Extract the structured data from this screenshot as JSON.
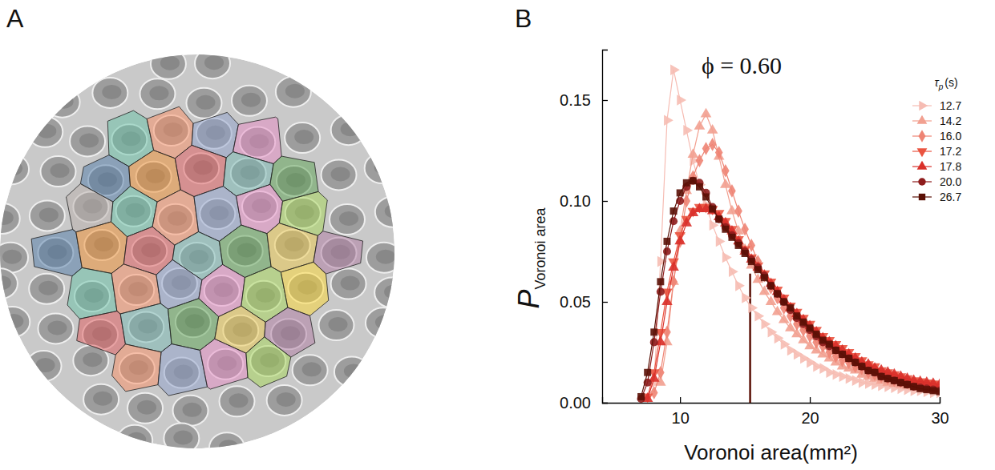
{
  "figure": {
    "panel_labels": [
      "A",
      "B"
    ]
  },
  "chart_data": {
    "type": "line",
    "title": "ϕ = 0.60",
    "xlabel": "Voronoi area(mm²)",
    "ylabel": "P",
    "ylabel_subscript": "Voronoi area",
    "legend_title": "τ",
    "legend_title_subscript": "p",
    "legend_title_unit": "(s)",
    "legend": "top-right",
    "grid": false,
    "xlim": [
      4,
      30
    ],
    "xticks": [
      10,
      20,
      30
    ],
    "ylim": [
      0,
      0.175
    ],
    "yticks": [
      {
        "value": 0,
        "label": "0.00"
      },
      {
        "value": 0.05,
        "label": "0.05"
      },
      {
        "value": 0.1,
        "label": "0.10"
      },
      {
        "value": 0.15,
        "label": "0.15"
      }
    ],
    "reference_line": {
      "x": 15.4,
      "y": 0.064,
      "color": "#5a1005"
    },
    "x": [
      7,
      7.5,
      8,
      8.5,
      9,
      9.5,
      10,
      10.5,
      11,
      11.5,
      12,
      12.5,
      13,
      13.5,
      14,
      14.5,
      15,
      15.5,
      16,
      16.5,
      17,
      17.5,
      18,
      18.5,
      19,
      19.5,
      20,
      20.5,
      21,
      21.5,
      22,
      22.5,
      23,
      23.5,
      24,
      24.5,
      25,
      25.5,
      26,
      26.5,
      27,
      27.5,
      28,
      28.5,
      29,
      29.5,
      30
    ],
    "series": [
      {
        "name": "12.7",
        "color": "#f6bcb3",
        "marker": "triangle-right",
        "line_style": "solid",
        "values": [
          null,
          null,
          0.01,
          0.07,
          0.14,
          0.165,
          0.15,
          0.135,
          0.12,
          0.108,
          0.098,
          0.088,
          0.08,
          0.072,
          0.065,
          0.058,
          0.052,
          0.047,
          0.043,
          0.039,
          0.035,
          0.032,
          0.029,
          0.026,
          0.024,
          0.022,
          0.02,
          0.018,
          0.017,
          0.015,
          0.014,
          0.013,
          0.012,
          0.011,
          0.01,
          0.0095,
          0.009,
          0.0085,
          0.008,
          0.0075,
          0.007,
          0.0065,
          0.006,
          0.006,
          0.0055,
          0.005,
          0.005
        ]
      },
      {
        "name": "14.2",
        "color": "#f2a090",
        "marker": "triangle-up",
        "line_style": "solid",
        "values": [
          null,
          null,
          null,
          0.01,
          0.03,
          0.06,
          0.085,
          0.105,
          0.123,
          0.137,
          0.143,
          0.135,
          0.122,
          0.108,
          0.095,
          0.085,
          0.076,
          0.068,
          0.061,
          0.055,
          0.05,
          0.045,
          0.041,
          0.037,
          0.034,
          0.031,
          0.028,
          0.026,
          0.024,
          0.022,
          0.02,
          0.018,
          0.017,
          0.016,
          0.014,
          0.013,
          0.012,
          0.011,
          0.01,
          0.0095,
          0.009,
          0.0085,
          0.008,
          0.0075,
          0.007,
          0.0068,
          0.0065
        ]
      },
      {
        "name": "16.0",
        "color": "#ee8474",
        "marker": "diamond",
        "line_style": "solid",
        "values": [
          null,
          null,
          0.005,
          0.015,
          0.035,
          0.06,
          0.08,
          0.1,
          0.112,
          0.12,
          0.126,
          0.128,
          0.124,
          0.115,
          0.105,
          0.095,
          0.086,
          0.078,
          0.07,
          0.063,
          0.057,
          0.052,
          0.047,
          0.043,
          0.039,
          0.036,
          0.033,
          0.03,
          0.028,
          0.025,
          0.023,
          0.021,
          0.02,
          0.018,
          0.017,
          0.015,
          0.014,
          0.013,
          0.012,
          0.011,
          0.0105,
          0.01,
          0.0095,
          0.009,
          0.0085,
          0.008,
          0.0078
        ]
      },
      {
        "name": "17.2",
        "color": "#ea5440",
        "marker": "triangle-down",
        "line_style": "solid",
        "values": [
          null,
          0.003,
          0.015,
          0.035,
          0.055,
          0.07,
          0.083,
          0.091,
          0.095,
          0.097,
          0.097,
          0.096,
          0.094,
          0.09,
          0.086,
          0.081,
          0.076,
          0.072,
          0.068,
          0.064,
          0.06,
          0.056,
          0.052,
          0.048,
          0.045,
          0.042,
          0.039,
          0.036,
          0.033,
          0.031,
          0.029,
          0.027,
          0.025,
          0.023,
          0.021,
          0.019,
          0.018,
          0.016,
          0.015,
          0.014,
          0.013,
          0.012,
          0.011,
          0.0105,
          0.01,
          0.0095,
          0.009
        ]
      },
      {
        "name": "17.8",
        "color": "#d9302a",
        "marker": "triangle-up",
        "line_style": "solid",
        "values": [
          null,
          0.002,
          0.012,
          0.03,
          0.05,
          0.067,
          0.08,
          0.089,
          0.094,
          0.096,
          0.096,
          0.095,
          0.092,
          0.089,
          0.085,
          0.08,
          0.075,
          0.071,
          0.067,
          0.063,
          0.059,
          0.055,
          0.051,
          0.047,
          0.044,
          0.041,
          0.038,
          0.035,
          0.032,
          0.03,
          0.028,
          0.026,
          0.024,
          0.022,
          0.02,
          0.019,
          0.017,
          0.016,
          0.015,
          0.014,
          0.013,
          0.012,
          0.011,
          0.0105,
          0.01,
          0.0095,
          0.009
        ]
      },
      {
        "name": "20.0",
        "color": "#8e1c1c",
        "marker": "circle",
        "line_style": "solid",
        "values": [
          0.002,
          0.01,
          0.03,
          0.055,
          0.075,
          0.09,
          0.1,
          0.107,
          0.11,
          0.109,
          0.104,
          0.097,
          0.091,
          0.087,
          0.083,
          0.079,
          0.075,
          0.071,
          0.067,
          0.063,
          0.058,
          0.054,
          0.05,
          0.046,
          0.042,
          0.039,
          0.036,
          0.033,
          0.03,
          0.028,
          0.026,
          0.024,
          0.022,
          0.02,
          0.018,
          0.016,
          0.015,
          0.013,
          0.012,
          0.011,
          0.01,
          0.009,
          0.008,
          0.0075,
          0.007,
          0.0065,
          0.006
        ]
      },
      {
        "name": "26.7",
        "color": "#5a1005",
        "marker": "square",
        "line_style": "solid",
        "values": [
          0.003,
          0.015,
          0.035,
          0.06,
          0.08,
          0.095,
          0.104,
          0.109,
          0.11,
          0.107,
          0.102,
          0.096,
          0.091,
          0.086,
          0.082,
          0.078,
          0.074,
          0.07,
          0.066,
          0.062,
          0.058,
          0.054,
          0.05,
          0.047,
          0.043,
          0.04,
          0.037,
          0.034,
          0.031,
          0.029,
          0.026,
          0.024,
          0.022,
          0.02,
          0.018,
          0.016,
          0.015,
          0.013,
          0.012,
          0.011,
          0.01,
          0.009,
          0.008,
          0.007,
          0.0065,
          0.006,
          0.0055
        ]
      }
    ]
  }
}
